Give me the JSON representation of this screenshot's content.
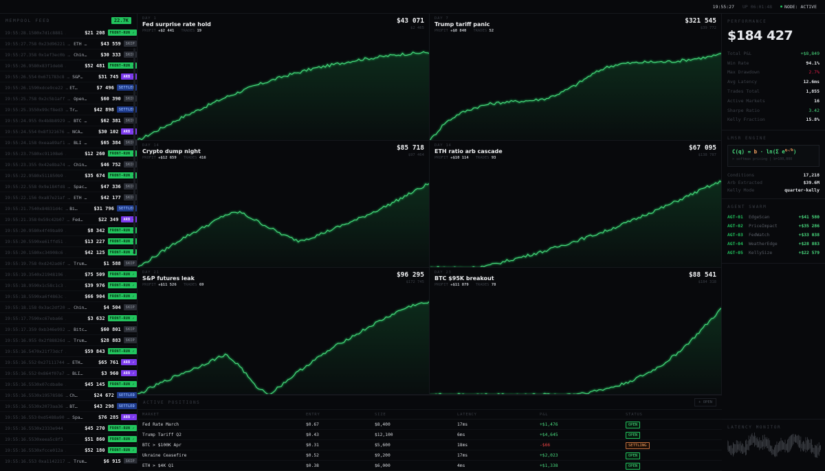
{
  "topbar": {
    "clock": "19:55:27",
    "uptime": "UP 06:01:48",
    "node_status": "NODE: ACTIVE"
  },
  "feed": {
    "title": "MEMPOOL FEED",
    "count": "22.7K",
    "rows": [
      {
        "ts": "19:55:28.158",
        "hash": "0x7d1c8881 …",
        "market": "",
        "amount": "$21 208",
        "status": "FRONT-RUN ✓",
        "kind": "front"
      },
      {
        "ts": "19:55:27.758",
        "hash": "0x23d96221 …",
        "market": "ETH …",
        "amount": "$43 559",
        "status": "SKIP",
        "kind": "skip"
      },
      {
        "ts": "19:55:27.358",
        "hash": "0x1ef3ec0b …",
        "market": "Chin…",
        "amount": "$30 333",
        "status": "SKIP",
        "kind": "skip"
      },
      {
        "ts": "19:55:26.958",
        "hash": "0x83f1deb8 …",
        "market": "",
        "amount": "$52 481",
        "status": "FRONT-RUN ✓",
        "kind": "front"
      },
      {
        "ts": "19:55:26.554",
        "hash": "0x671783c8 …",
        "market": "S&P…",
        "amount": "$31 745",
        "status": "ARB ✓",
        "kind": "arb"
      },
      {
        "ts": "19:55:26.159",
        "hash": "0xdce9ce22 …",
        "market": "ET…",
        "amount": "$7 496",
        "status": "SETTLED",
        "kind": "settled"
      },
      {
        "ts": "19:55:25.758",
        "hash": "0x2c5b1aff …",
        "market": "Open…",
        "amount": "$60 390",
        "status": "SKIP",
        "kind": "skip"
      },
      {
        "ts": "19:55:25.355",
        "hash": "0x99cf8ed3 …",
        "market": "Tr…",
        "amount": "$42 898",
        "status": "SETTLED",
        "kind": "settled"
      },
      {
        "ts": "19:55:24.955",
        "hash": "0x4b8b8929 …",
        "market": "BTC …",
        "amount": "$62 381",
        "status": "SKIP",
        "kind": "skip"
      },
      {
        "ts": "19:55:24.554",
        "hash": "0x8f321676 …",
        "market": "NCA…",
        "amount": "$30 102",
        "status": "ARB ✓",
        "kind": "arb"
      },
      {
        "ts": "19:55:24.158",
        "hash": "0xeaa89af1 …",
        "market": "BLI …",
        "amount": "$65 384",
        "status": "SKIP",
        "kind": "skip"
      },
      {
        "ts": "19:55:23.758",
        "hash": "0xc91108e6 …",
        "market": "",
        "amount": "$12 260",
        "status": "FRONT-RUN ✓",
        "kind": "front"
      },
      {
        "ts": "19:55:23.355",
        "hash": "0x42e8ba74 …",
        "market": "Chin…",
        "amount": "$46 752",
        "status": "SKIP",
        "kind": "skip"
      },
      {
        "ts": "19:55:22.958",
        "hash": "0x511850b9 …",
        "market": "",
        "amount": "$35 674",
        "status": "FRONT-RUN ✓",
        "kind": "front"
      },
      {
        "ts": "19:55:22.558",
        "hash": "0x9e184fd8 …",
        "market": "Spac…",
        "amount": "$47 336",
        "status": "SKIP",
        "kind": "skip"
      },
      {
        "ts": "19:55:22.156",
        "hash": "0xa87e21af …",
        "market": "ETH …",
        "amount": "$42 177",
        "status": "SKIP",
        "kind": "skip"
      },
      {
        "ts": "19:55:21.754",
        "hash": "0x84831d4c …",
        "market": "Bi…",
        "amount": "$31 796",
        "status": "SETTLED",
        "kind": "settled"
      },
      {
        "ts": "19:55:21.358",
        "hash": "0x59c42b07 …",
        "market": "Fed…",
        "amount": "$22 349",
        "status": "ARB ✓",
        "kind": "arb"
      },
      {
        "ts": "19:55:20.958",
        "hash": "0x4f49ba89 …",
        "market": "",
        "amount": "$8 342",
        "status": "FRONT-RUN ✓",
        "kind": "front"
      },
      {
        "ts": "19:55:20.559",
        "hash": "0xe61ffd51 …",
        "market": "",
        "amount": "$13 227",
        "status": "FRONT-RUN ✓",
        "kind": "front"
      },
      {
        "ts": "19:55:20.158",
        "hash": "0xc34908c6 …",
        "market": "",
        "amount": "$42 125",
        "status": "FRONT-RUN ✓",
        "kind": "front"
      },
      {
        "ts": "19:55:19.758",
        "hash": "0xd242ad6f …",
        "market": "Trum…",
        "amount": "$1 588",
        "status": "SKIP",
        "kind": "skip"
      },
      {
        "ts": "19:55:19.354",
        "hash": "0x21948196 …",
        "market": "",
        "amount": "$75 509",
        "status": "FRONT-RUN ✓",
        "kind": "front"
      },
      {
        "ts": "19:55:18.959",
        "hash": "0x1c58c1c3 …",
        "market": "",
        "amount": "$39 976",
        "status": "FRONT-RUN ✓",
        "kind": "front"
      },
      {
        "ts": "19:55:18.559",
        "hash": "0xa6f4863c …",
        "market": "",
        "amount": "$66 904",
        "status": "FRONT-RUN ✓",
        "kind": "front"
      },
      {
        "ts": "19:55:18.158",
        "hash": "0x3ac2df20 …",
        "market": "Chin…",
        "amount": "$4 504",
        "status": "SKIP",
        "kind": "skip"
      },
      {
        "ts": "19:55:17.759",
        "hash": "0xc67eba66 …",
        "market": "",
        "amount": "$3 632",
        "status": "FRONT-RUN ✓",
        "kind": "front"
      },
      {
        "ts": "19:55:17.359",
        "hash": "0xb346e992 …",
        "market": "Bitc…",
        "amount": "$60 801",
        "status": "SKIP",
        "kind": "skip"
      },
      {
        "ts": "19:55:16.955",
        "hash": "0x2f88826d …",
        "market": "Trum…",
        "amount": "$28 883",
        "status": "SKIP",
        "kind": "skip"
      },
      {
        "ts": "19:55:16.547",
        "hash": "0x21f73dcf …",
        "market": "",
        "amount": "$59 843",
        "status": "FRONT-RUN ✓",
        "kind": "front"
      },
      {
        "ts": "19:55:16.552",
        "hash": "0x27111744 …",
        "market": "ETH…",
        "amount": "$65 761",
        "status": "ARB ✓",
        "kind": "arb"
      },
      {
        "ts": "19:55:16.552",
        "hash": "0x864f07a7 …",
        "market": "BLI…",
        "amount": "$3 960",
        "status": "ARB ✓",
        "kind": "arb"
      },
      {
        "ts": "19:55:16.553",
        "hash": "0x07cdba8e …",
        "market": "",
        "amount": "$45 145",
        "status": "FRONT-RUN ✓",
        "kind": "front"
      },
      {
        "ts": "19:55:16.553",
        "hash": "0x19578586 …",
        "market": "Ch…",
        "amount": "$24 672",
        "status": "SETTLED",
        "kind": "settled"
      },
      {
        "ts": "19:55:16.553",
        "hash": "0x2073aa36 …",
        "market": "BT…",
        "amount": "$43 298",
        "status": "SETTLED",
        "kind": "settled"
      },
      {
        "ts": "19:55:16.553",
        "hash": "0xd5488a90 …",
        "market": "Spa…",
        "amount": "$76 285",
        "status": "ARB ✓",
        "kind": "arb"
      },
      {
        "ts": "19:55:16.553",
        "hash": "0x2333e944 …",
        "market": "",
        "amount": "$45 270",
        "status": "FRONT-RUN ✓",
        "kind": "front"
      },
      {
        "ts": "19:55:16.553",
        "hash": "0xeea5c8f3 …",
        "market": "",
        "amount": "$51 860",
        "status": "FRONT-RUN ✓",
        "kind": "front"
      },
      {
        "ts": "19:55:16.553",
        "hash": "0xfcce012a …",
        "market": "",
        "amount": "$52 180",
        "status": "FRONT-RUN ✓",
        "kind": "front"
      },
      {
        "ts": "19:55:16.553",
        "hash": "0xa1142217 …",
        "market": "Trum…",
        "amount": "$6 915",
        "status": "SKIP",
        "kind": "skip"
      }
    ]
  },
  "cards": [
    {
      "day": "DAY 1",
      "title": "Fed surprise rate hold",
      "profit_label": "PROFIT",
      "profit": "+$2 441",
      "trades_label": "TRADES",
      "trades": "19",
      "value": "$43 071",
      "subvalue": "$2 465"
    },
    {
      "day": "DAY 7",
      "title": "Trump tariff panic",
      "profit_label": "PROFIT",
      "profit": "+$8 840",
      "trades_label": "TRADES",
      "trades": "52",
      "value": "$321 545",
      "subvalue": "$39 772"
    },
    {
      "day": "DAY 14",
      "title": "Crypto dump night",
      "profit_label": "PROFIT",
      "profit": "+$12 659",
      "trades_label": "TRADES",
      "trades": "416",
      "value": "$85 718",
      "subvalue": "$97 464"
    },
    {
      "day": "DAY 14",
      "title": "ETH ratio arb cascade",
      "profit_label": "PROFIT",
      "profit": "+$10 114",
      "trades_label": "TRADES",
      "trades": "93",
      "value": "$67 095",
      "subvalue": "$138 787"
    },
    {
      "day": "DAY 21",
      "title": "S&P futures leak",
      "profit_label": "PROFIT",
      "profit": "+$11 526",
      "trades_label": "TRADES",
      "trades": "69",
      "value": "$96 295",
      "subvalue": "$172 745"
    },
    {
      "day": "DAY 23",
      "title": "BTC $95K breakout",
      "profit_label": "PROFIT",
      "profit": "+$11 879",
      "trades_label": "TRADES",
      "trades": "78",
      "value": "$88 541",
      "subvalue": "$184 318"
    }
  ],
  "chart_data": [
    {
      "type": "line",
      "title": "Fed surprise rate hold",
      "shape": "concave rise",
      "y": [
        0,
        8,
        16,
        24,
        31,
        38,
        45,
        51,
        57,
        62,
        67,
        71,
        75,
        78,
        81,
        84,
        86,
        88,
        90,
        91,
        92
      ]
    },
    {
      "type": "line",
      "title": "Trump tariff panic",
      "shape": "step rise",
      "y": [
        0,
        18,
        28,
        34,
        38,
        40,
        41,
        42,
        44,
        50,
        58,
        68,
        76,
        80,
        81,
        82,
        82,
        83,
        85,
        87,
        90
      ]
    },
    {
      "type": "line",
      "title": "Crypto dump night",
      "shape": "peak-dip-rise",
      "y": [
        0,
        10,
        20,
        30,
        38,
        46,
        55,
        58,
        50,
        42,
        34,
        28,
        32,
        38,
        44,
        50,
        57,
        64,
        72,
        80,
        88
      ]
    },
    {
      "type": "line",
      "title": "ETH ratio arb cascade",
      "shape": "flat then linear",
      "y": [
        0,
        0,
        0,
        0,
        2,
        6,
        10,
        14,
        18,
        23,
        28,
        33,
        38,
        44,
        50,
        57,
        63,
        70,
        77,
        84,
        90
      ]
    },
    {
      "type": "line",
      "title": "S&P futures leak",
      "shape": "peak-crash-rise",
      "y": [
        0,
        8,
        15,
        22,
        28,
        35,
        42,
        30,
        10,
        0,
        12,
        24,
        35,
        45,
        55,
        63,
        72,
        80,
        88,
        94,
        96
      ]
    },
    {
      "type": "line",
      "title": "BTC $95K breakout",
      "shape": "exponential",
      "y": [
        0,
        0,
        0,
        0,
        0,
        0,
        0,
        0,
        0,
        0,
        1,
        3,
        6,
        10,
        16,
        23,
        32,
        44,
        58,
        74,
        90
      ]
    }
  ],
  "positions": {
    "title": "ACTIVE POSITIONS",
    "open_button": "+ OPEN",
    "columns": [
      "MARKET",
      "ENTRY",
      "SIZE",
      "LATENCY",
      "P&L",
      "STATUS"
    ],
    "rows": [
      {
        "market": "Fed Rate March",
        "entry": "$0.67",
        "size": "$8,400",
        "latency": "17ms",
        "pnl": "+$1,476",
        "pnl_sign": "pos",
        "status": "OPEN",
        "status_kind": "open"
      },
      {
        "market": "Trump Tariff Q2",
        "entry": "$0.43",
        "size": "$12,100",
        "latency": "6ms",
        "pnl": "+$4,645",
        "pnl_sign": "pos",
        "status": "OPEN",
        "status_kind": "open"
      },
      {
        "market": "BTC > $100K Apr",
        "entry": "$0.31",
        "size": "$5,600",
        "latency": "18ms",
        "pnl": "-$66",
        "pnl_sign": "neg",
        "status": "SETTLING",
        "status_kind": "settling"
      },
      {
        "market": "Ukraine Ceasefire",
        "entry": "$0.52",
        "size": "$9,200",
        "latency": "17ms",
        "pnl": "+$2,023",
        "pnl_sign": "pos",
        "status": "OPEN",
        "status_kind": "open"
      },
      {
        "market": "ETH > $4K Q1",
        "entry": "$0.38",
        "size": "$6,000",
        "latency": "4ms",
        "pnl": "+$1,338",
        "pnl_sign": "pos",
        "status": "OPEN",
        "status_kind": "open"
      }
    ]
  },
  "performance": {
    "title": "PERFORMANCE",
    "total": "$184 427",
    "stats": [
      {
        "label": "Total P&L",
        "value": "+$8,849",
        "tone": "g"
      },
      {
        "label": "Win Rate",
        "value": "94.1%",
        "tone": ""
      },
      {
        "label": "Max Drawdown",
        "value": "2.7%",
        "tone": "r"
      },
      {
        "label": "Avg Latency",
        "value": "12.6ms",
        "tone": ""
      },
      {
        "label": "Trades Total",
        "value": "1,855",
        "tone": ""
      },
      {
        "label": "Active Markets",
        "value": "16",
        "tone": ""
      },
      {
        "label": "Sharpe Ratio",
        "value": "3.42",
        "tone": "g"
      },
      {
        "label": "Kelly Fraction",
        "value": "15.8%",
        "tone": ""
      }
    ]
  },
  "lmsr": {
    "title": "LMSR ENGINE",
    "formula_left": "C(q) = ",
    "formula_b": "b",
    "formula_mid": " · ln(Σ e",
    "formula_exp": "qᵢ/b",
    "formula_end": ")",
    "formula_sub": "> softmax pricing | b=100,000",
    "stats": [
      {
        "label": "Conditions",
        "value": "17,218"
      },
      {
        "label": "Arb Extracted",
        "value": "$39.6M"
      },
      {
        "label": "Kelly Mode",
        "value": "quarter-kelly"
      }
    ]
  },
  "swarm": {
    "title": "AGENT SWARM",
    "agents": [
      {
        "id": "AGT-01",
        "name": "EdgeScan",
        "pnl": "+$41 580"
      },
      {
        "id": "AGT-02",
        "name": "PriceImpact",
        "pnl": "+$35 286"
      },
      {
        "id": "AGT-03",
        "name": "FedWatch",
        "pnl": "+$33 038"
      },
      {
        "id": "AGT-04",
        "name": "WeatherEdge",
        "pnl": "+$28 883"
      },
      {
        "id": "AGT-05",
        "name": "KellySize",
        "pnl": "+$22 579"
      }
    ]
  },
  "latency": {
    "title": "LATENCY MONITOR"
  },
  "colors": {
    "accent": "#22c55e",
    "bg": "#08090c",
    "negative": "#ef4444",
    "arb": "#7c3aed",
    "settled": "#1e3a8a"
  }
}
